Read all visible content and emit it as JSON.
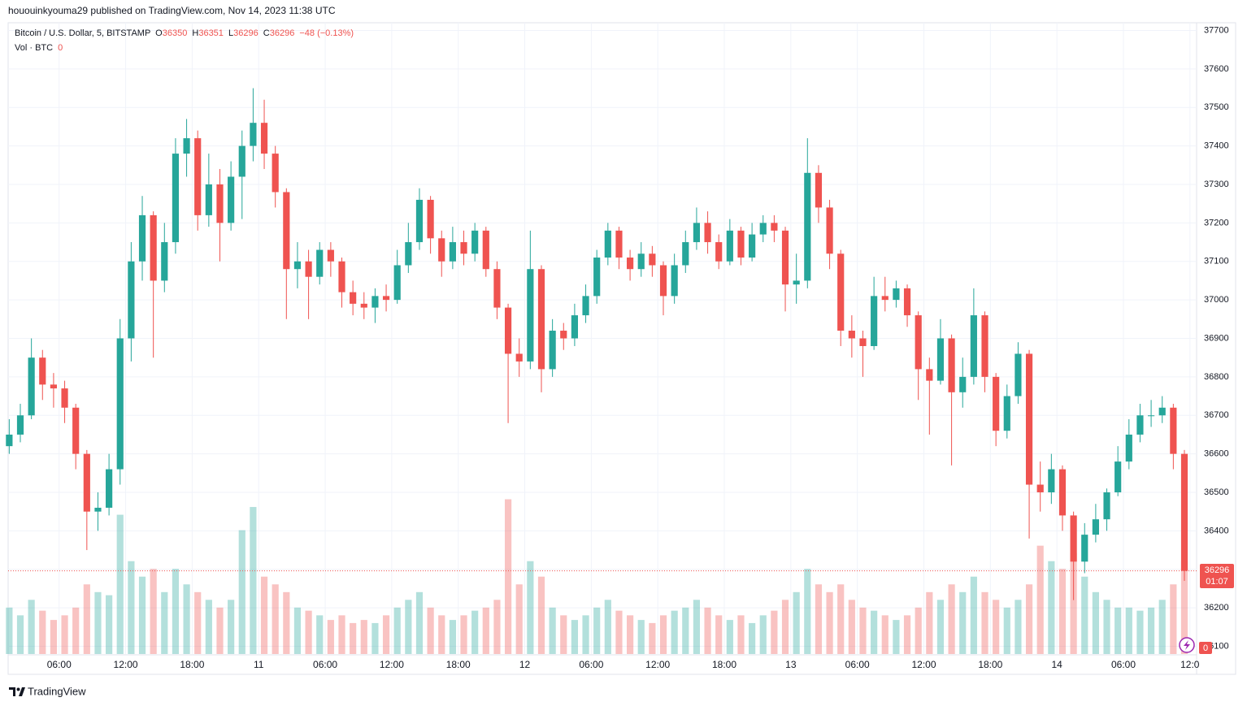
{
  "chart_data": {
    "type": "candlestick",
    "publisher_line": "hououinkyouma29 published on TradingView.com, Nov 14, 2023 11:38 UTC",
    "legend": {
      "symbol": "Bitcoin / U.S. Dollar, 5, BITSTAMP",
      "open_label": "O",
      "open": 36350,
      "high_label": "H",
      "high": 36351,
      "low_label": "L",
      "low": 36296,
      "close_label": "C",
      "close": 36296,
      "change": "−48 (−0.13%)"
    },
    "vol_legend": {
      "label": "Vol · BTC",
      "value": 0
    },
    "countdown": "01:07",
    "brand": "TradingView",
    "up_color": "#26a69a",
    "down_color": "#ef5350",
    "xlim": [
      1.4,
      108.6
    ],
    "xticks": [
      {
        "value": 6,
        "label": "06:00"
      },
      {
        "value": 12,
        "label": "12:00"
      },
      {
        "value": 18,
        "label": "18:00"
      },
      {
        "value": 24,
        "label": "11"
      },
      {
        "value": 30,
        "label": "06:00"
      },
      {
        "value": 36,
        "label": "12:00"
      },
      {
        "value": 42,
        "label": "18:00"
      },
      {
        "value": 48,
        "label": "12"
      },
      {
        "value": 54,
        "label": "06:00"
      },
      {
        "value": 60,
        "label": "12:00"
      },
      {
        "value": 66,
        "label": "18:00"
      },
      {
        "value": 72,
        "label": "13"
      },
      {
        "value": 78,
        "label": "06:00"
      },
      {
        "value": 84,
        "label": "12:00"
      },
      {
        "value": 90,
        "label": "18:00"
      },
      {
        "value": 96,
        "label": "14"
      },
      {
        "value": 102,
        "label": "06:00"
      },
      {
        "value": 108,
        "label": "12:0"
      }
    ],
    "ylim": [
      36080,
      37720
    ],
    "yticks": [
      36100,
      36200,
      36300,
      36400,
      36500,
      36600,
      36700,
      36800,
      36900,
      37000,
      37100,
      37200,
      37300,
      37400,
      37500,
      37600,
      37700
    ],
    "vlim": [
      0,
      105
    ],
    "grid": true,
    "x": [
      1.5,
      2.5,
      3.5,
      4.5,
      5.5,
      6.5,
      7.5,
      8.5,
      9.5,
      10.5,
      11.5,
      12.5,
      13.5,
      14.5,
      15.5,
      16.5,
      17.5,
      18.5,
      19.5,
      20.5,
      21.5,
      22.5,
      23.5,
      24.5,
      25.5,
      26.5,
      27.5,
      28.5,
      29.5,
      30.5,
      31.5,
      32.5,
      33.5,
      34.5,
      35.5,
      36.5,
      37.5,
      38.5,
      39.5,
      40.5,
      41.5,
      42.5,
      43.5,
      44.5,
      45.5,
      46.5,
      47.5,
      48.5,
      49.5,
      50.5,
      51.5,
      52.5,
      53.5,
      54.5,
      55.5,
      56.5,
      57.5,
      58.5,
      59.5,
      60.5,
      61.5,
      62.5,
      63.5,
      64.5,
      65.5,
      66.5,
      67.5,
      68.5,
      69.5,
      70.5,
      71.5,
      72.5,
      73.5,
      74.5,
      75.5,
      76.5,
      77.5,
      78.5,
      79.5,
      80.5,
      81.5,
      82.5,
      83.5,
      84.5,
      85.5,
      86.5,
      87.5,
      88.5,
      89.5,
      90.5,
      91.5,
      92.5,
      93.5,
      94.5,
      95.5,
      96.5,
      97.5,
      98.5,
      99.5,
      100.5,
      101.5,
      102.5,
      103.5,
      104.5,
      105.5,
      106.5,
      107.5
    ],
    "open": [
      36620,
      36650,
      36700,
      36850,
      36780,
      36770,
      36720,
      36600,
      36450,
      36460,
      36560,
      36900,
      37100,
      37220,
      37050,
      37150,
      37380,
      37420,
      37220,
      37300,
      37200,
      37320,
      37400,
      37460,
      37380,
      37280,
      37080,
      37100,
      37060,
      37130,
      37100,
      37020,
      36990,
      36980,
      37010,
      37000,
      37090,
      37150,
      37260,
      37160,
      37100,
      37150,
      37120,
      37180,
      37080,
      36980,
      36860,
      36840,
      37080,
      36820,
      36920,
      36900,
      36960,
      37010,
      37110,
      37180,
      37110,
      37080,
      37120,
      37090,
      37010,
      37090,
      37150,
      37200,
      37150,
      37100,
      37180,
      37110,
      37170,
      37200,
      37180,
      37040,
      37050,
      37330,
      37240,
      37120,
      36920,
      36900,
      36880,
      37010,
      37000,
      37030,
      36960,
      36820,
      36790,
      36900,
      36760,
      36800,
      36960,
      36800,
      36660,
      36750,
      36860,
      36520,
      36500,
      36560,
      36440,
      36320,
      36390,
      36430,
      36500,
      36580,
      36650,
      36700,
      36700,
      36720,
      36600
    ],
    "high": [
      36690,
      36730,
      36900,
      36870,
      36810,
      36790,
      36730,
      36610,
      36500,
      36600,
      36950,
      37150,
      37270,
      37230,
      37200,
      37420,
      37470,
      37440,
      37380,
      37340,
      37360,
      37440,
      37550,
      37520,
      37400,
      37290,
      37150,
      37130,
      37150,
      37150,
      37110,
      37050,
      37020,
      37030,
      37040,
      37130,
      37200,
      37290,
      37270,
      37180,
      37190,
      37180,
      37200,
      37190,
      37100,
      36990,
      36900,
      37180,
      37090,
      36950,
      36940,
      36990,
      37040,
      37130,
      37200,
      37190,
      37130,
      37150,
      37140,
      37100,
      37120,
      37180,
      37240,
      37230,
      37170,
      37210,
      37190,
      37200,
      37220,
      37220,
      37190,
      37120,
      37420,
      37350,
      37260,
      37130,
      36960,
      36920,
      37060,
      37060,
      37050,
      37040,
      36970,
      36850,
      36950,
      36910,
      36850,
      37030,
      36970,
      36810,
      36780,
      36890,
      36870,
      36580,
      36600,
      36570,
      36450,
      36420,
      36470,
      36510,
      36620,
      36690,
      36730,
      36740,
      36750,
      36730,
      36610
    ],
    "low": [
      36600,
      36630,
      36690,
      36740,
      36720,
      36680,
      36560,
      36350,
      36400,
      36440,
      36520,
      36840,
      37050,
      36850,
      37020,
      37120,
      37320,
      37180,
      37190,
      37100,
      37180,
      37210,
      37360,
      37340,
      37240,
      36950,
      37030,
      36950,
      37040,
      37060,
      36980,
      36960,
      36950,
      36940,
      36970,
      36990,
      37070,
      37130,
      37120,
      37060,
      37080,
      37090,
      37100,
      37060,
      36950,
      36680,
      36800,
      36820,
      36760,
      36800,
      36870,
      36880,
      36940,
      36990,
      37090,
      37080,
      37050,
      37060,
      37060,
      36960,
      36990,
      37070,
      37130,
      37120,
      37080,
      37090,
      37090,
      37100,
      37150,
      37150,
      36970,
      36990,
      37030,
      37200,
      37080,
      36880,
      36850,
      36800,
      36870,
      36970,
      36980,
      36930,
      36740,
      36650,
      36780,
      36570,
      36720,
      36780,
      36760,
      36620,
      36640,
      36730,
      36380,
      36450,
      36470,
      36400,
      36220,
      36290,
      36370,
      36400,
      36490,
      36560,
      36630,
      36670,
      36680,
      36560,
      36270
    ],
    "close": [
      36650,
      36700,
      36850,
      36780,
      36770,
      36720,
      36600,
      36450,
      36460,
      36560,
      36900,
      37100,
      37220,
      37050,
      37150,
      37380,
      37420,
      37220,
      37300,
      37200,
      37320,
      37400,
      37460,
      37380,
      37280,
      37080,
      37100,
      37060,
      37130,
      37100,
      37020,
      36990,
      36980,
      37010,
      37000,
      37090,
      37150,
      37260,
      37160,
      37100,
      37150,
      37120,
      37180,
      37080,
      36980,
      36860,
      36840,
      37080,
      36820,
      36920,
      36900,
      36960,
      37010,
      37110,
      37180,
      37110,
      37080,
      37120,
      37090,
      37010,
      37090,
      37150,
      37200,
      37150,
      37100,
      37180,
      37110,
      37170,
      37200,
      37180,
      37040,
      37050,
      37330,
      37240,
      37120,
      36920,
      36900,
      36880,
      37010,
      37000,
      37030,
      36960,
      36820,
      36790,
      36900,
      36760,
      36800,
      36960,
      36800,
      36660,
      36750,
      36860,
      36520,
      36500,
      36560,
      36440,
      36320,
      36390,
      36430,
      36500,
      36580,
      36650,
      36700,
      36700,
      36720,
      36600,
      36296
    ],
    "volume": [
      30,
      25,
      35,
      28,
      22,
      25,
      30,
      45,
      40,
      38,
      90,
      60,
      50,
      55,
      40,
      55,
      45,
      40,
      35,
      30,
      35,
      80,
      95,
      50,
      45,
      40,
      30,
      28,
      25,
      22,
      25,
      20,
      22,
      20,
      25,
      30,
      35,
      40,
      30,
      25,
      22,
      25,
      28,
      30,
      35,
      100,
      45,
      60,
      50,
      30,
      25,
      22,
      25,
      30,
      35,
      28,
      25,
      22,
      20,
      25,
      28,
      30,
      35,
      30,
      25,
      22,
      25,
      20,
      25,
      28,
      35,
      40,
      55,
      45,
      40,
      45,
      35,
      30,
      28,
      25,
      22,
      25,
      30,
      40,
      35,
      45,
      40,
      50,
      40,
      35,
      30,
      35,
      45,
      70,
      60,
      55,
      65,
      50,
      40,
      35,
      30,
      30,
      28,
      30,
      35,
      45,
      60
    ]
  }
}
